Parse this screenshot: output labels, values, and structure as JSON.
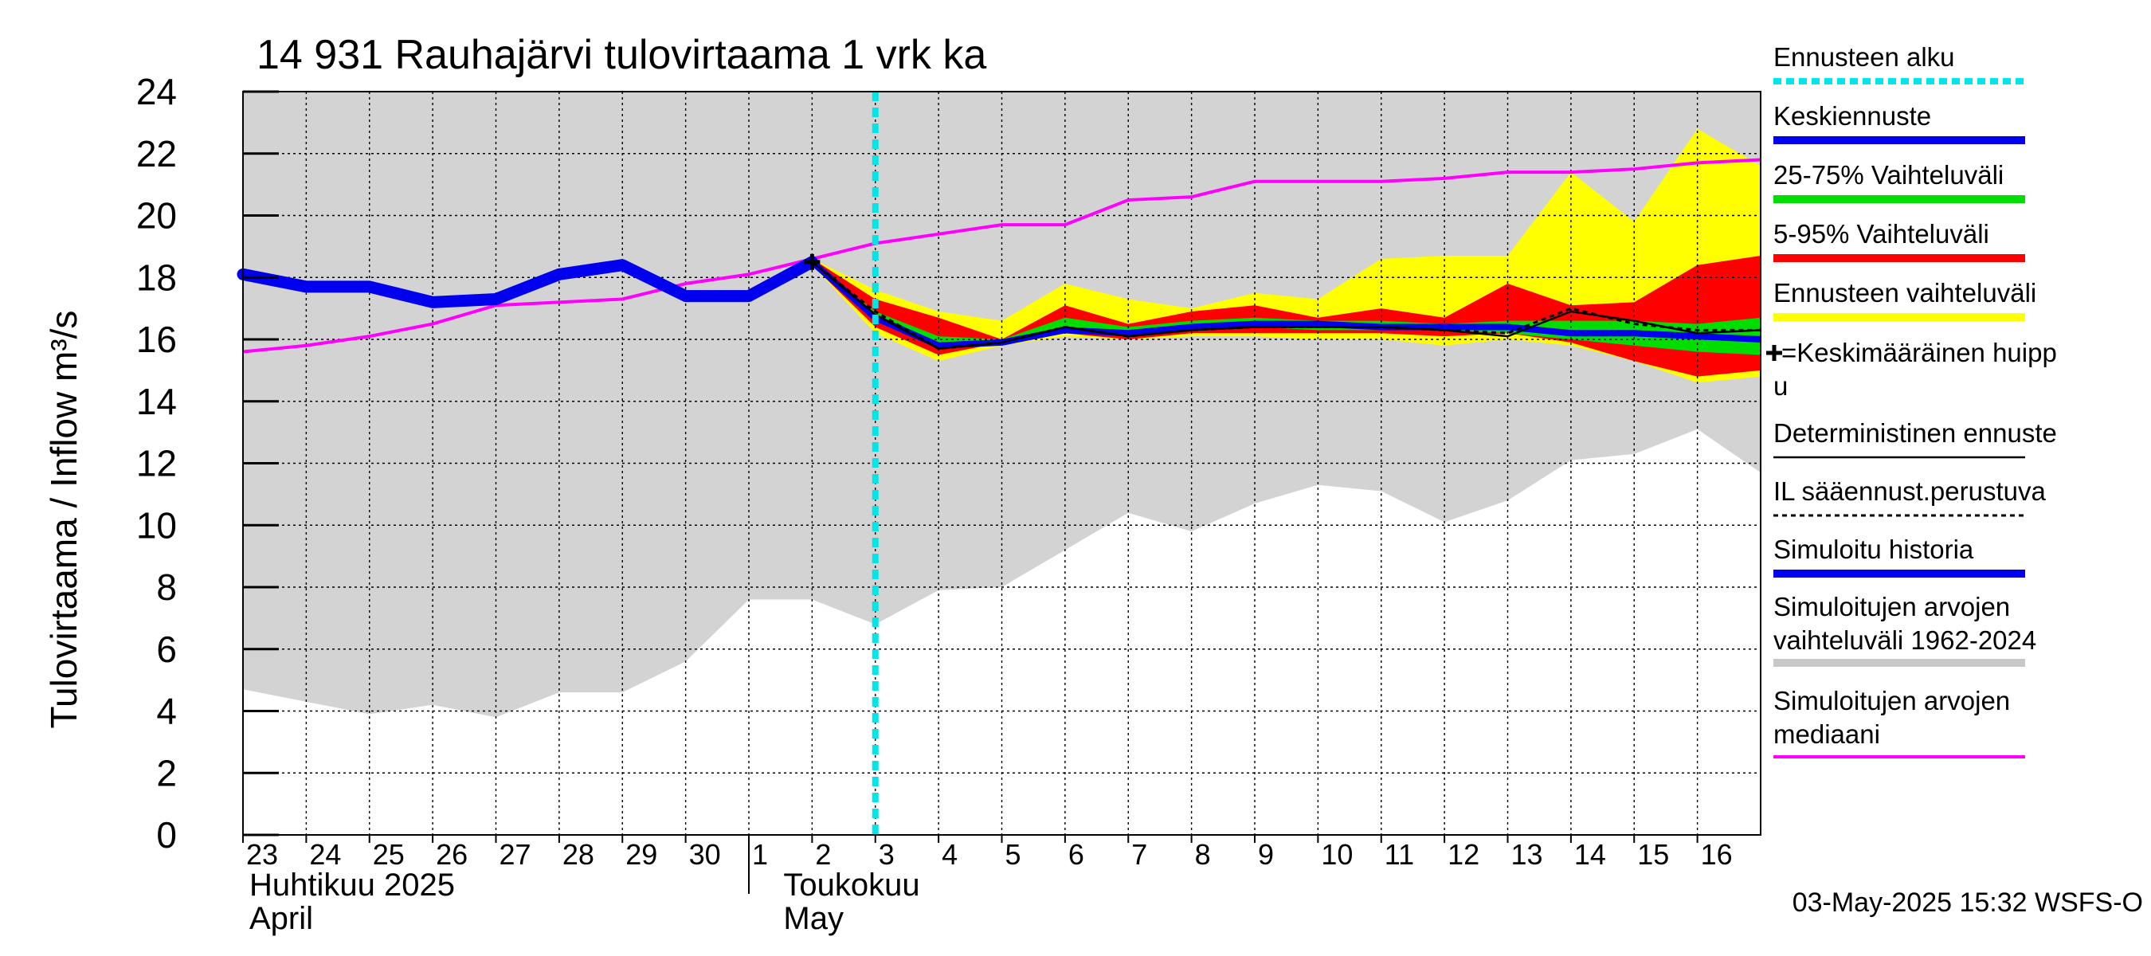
{
  "chart_data": {
    "type": "area",
    "title": "14 931 Rauhajärvi tulovirtaama 1 vrk ka",
    "ylabel": "Tulovirtaama / Inflow    m³/s",
    "ylim": [
      0,
      24
    ],
    "yticks": [
      0,
      2,
      4,
      6,
      8,
      10,
      12,
      14,
      16,
      18,
      20,
      22,
      24
    ],
    "grid": true,
    "x_labels": [
      "23",
      "24",
      "25",
      "26",
      "27",
      "28",
      "29",
      "30",
      "1",
      "2",
      "3",
      "4",
      "5",
      "6",
      "7",
      "8",
      "9",
      "10",
      "11",
      "12",
      "13",
      "14",
      "15",
      "16"
    ],
    "months": [
      {
        "fi": "Huhtikuu  2025",
        "en": "April"
      },
      {
        "fi": "Toukokuu",
        "en": "May"
      }
    ],
    "forecast_start_x": 10,
    "x_axis_max": 24,
    "series": {
      "historical_range": {
        "name": "Simuloitujen arvojen vaihteluväli 1962-2024",
        "color": "#d3d3d3",
        "x": [
          0,
          1,
          2,
          3,
          4,
          5,
          6,
          7,
          8,
          9,
          10,
          11,
          12,
          13,
          14,
          15,
          16,
          17,
          18,
          19,
          20,
          21,
          22,
          23,
          24
        ],
        "upper": [
          24,
          24,
          24,
          24,
          24,
          24,
          24,
          24,
          24,
          24,
          24,
          24,
          24,
          24,
          24,
          24,
          24,
          24,
          24,
          24,
          24,
          24,
          24,
          24,
          24
        ],
        "lower": [
          4.7,
          4.3,
          3.9,
          4.2,
          3.8,
          4.6,
          4.6,
          5.6,
          7.6,
          7.6,
          6.8,
          7.9,
          8.0,
          9.2,
          10.4,
          9.8,
          10.7,
          11.3,
          11.1,
          10.1,
          10.8,
          12.1,
          12.3,
          13.1,
          11.7
        ]
      },
      "forecast_range": {
        "name": "Ennusteen vaihteluväli",
        "color": "#ffff00",
        "x": [
          9,
          10,
          11,
          12,
          13,
          14,
          15,
          16,
          17,
          18,
          19,
          20,
          21,
          22,
          23,
          24
        ],
        "upper": [
          18.6,
          17.6,
          16.9,
          16.6,
          17.8,
          17.3,
          17.0,
          17.5,
          17.3,
          18.6,
          18.7,
          18.7,
          21.4,
          19.8,
          22.8,
          21.6
        ],
        "lower": [
          18.4,
          16.2,
          15.3,
          15.8,
          16.1,
          16.0,
          16.1,
          16.1,
          16.0,
          16.0,
          15.8,
          16.0,
          15.8,
          15.3,
          14.6,
          14.8
        ]
      },
      "p5_95": {
        "name": "5-95% Vaihteluväli",
        "color": "#ff0000",
        "x": [
          9,
          10,
          11,
          12,
          13,
          14,
          15,
          16,
          17,
          18,
          19,
          20,
          21,
          22,
          23,
          24
        ],
        "upper": [
          18.6,
          17.3,
          16.7,
          16.0,
          17.1,
          16.5,
          16.9,
          17.1,
          16.7,
          17.0,
          16.7,
          17.8,
          17.1,
          17.2,
          18.4,
          18.7
        ],
        "lower": [
          18.4,
          16.4,
          15.5,
          15.9,
          16.2,
          16.0,
          16.2,
          16.2,
          16.2,
          16.2,
          16.1,
          16.2,
          15.9,
          15.3,
          14.8,
          15.0
        ]
      },
      "p25_75": {
        "name": "25-75% Vaihteluväli",
        "color": "#00dd00",
        "x": [
          9,
          10,
          11,
          12,
          13,
          14,
          15,
          16,
          17,
          18,
          19,
          20,
          21,
          22,
          23,
          24
        ],
        "upper": [
          18.5,
          16.9,
          16.1,
          16.0,
          16.7,
          16.4,
          16.6,
          16.7,
          16.6,
          16.6,
          16.5,
          16.6,
          16.6,
          16.6,
          16.5,
          16.7
        ],
        "lower": [
          18.4,
          16.7,
          15.7,
          15.9,
          16.3,
          16.1,
          16.3,
          16.4,
          16.3,
          16.3,
          16.3,
          16.2,
          16.0,
          15.8,
          15.6,
          15.5
        ]
      },
      "median": {
        "name": "Simuloitujen arvojen mediaani",
        "color": "#ff00ff",
        "x": [
          0,
          1,
          2,
          3,
          4,
          5,
          6,
          7,
          8,
          9,
          10,
          11,
          12,
          13,
          14,
          15,
          16,
          17,
          18,
          19,
          20,
          21,
          22,
          23,
          24
        ],
        "values": [
          15.6,
          15.8,
          16.1,
          16.5,
          17.1,
          17.2,
          17.3,
          17.8,
          18.1,
          18.6,
          19.1,
          19.4,
          19.7,
          19.7,
          20.5,
          20.6,
          21.1,
          21.1,
          21.1,
          21.2,
          21.4,
          21.4,
          21.5,
          21.7,
          21.8
        ]
      },
      "simulated_history": {
        "name": "Simuloitu historia",
        "color": "#0000ee",
        "x": [
          0,
          1,
          2,
          3,
          4,
          5,
          6,
          7,
          8,
          9
        ],
        "values": [
          18.1,
          17.7,
          17.7,
          17.2,
          17.3,
          18.1,
          18.4,
          17.4,
          17.4,
          18.5
        ]
      },
      "mean_forecast": {
        "name": "Keskiennuste",
        "color": "#0000ee",
        "x": [
          9,
          10,
          11,
          12,
          13,
          14,
          15,
          16,
          17,
          18,
          19,
          20,
          21,
          22,
          23,
          24
        ],
        "values": [
          18.5,
          16.7,
          15.8,
          15.9,
          16.3,
          16.2,
          16.4,
          16.5,
          16.5,
          16.4,
          16.4,
          16.4,
          16.2,
          16.2,
          16.1,
          16.0
        ]
      },
      "deterministic": {
        "name": "Deterministinen ennuste",
        "color": "#000000",
        "x": [
          9,
          10,
          11,
          12,
          13,
          14,
          15,
          16,
          17,
          18,
          19,
          20,
          21,
          22,
          23,
          24
        ],
        "values": [
          18.5,
          16.8,
          15.7,
          15.9,
          16.4,
          16.1,
          16.3,
          16.4,
          16.4,
          16.4,
          16.3,
          16.1,
          16.9,
          16.6,
          16.2,
          16.3
        ]
      },
      "il_forecast": {
        "name": "IL sääennust.perustuva",
        "color": "#000000",
        "x": [
          9,
          10,
          11,
          12,
          13,
          14,
          15,
          16,
          17,
          18,
          19,
          20,
          21,
          22,
          23,
          24
        ],
        "values": [
          18.5,
          16.9,
          15.7,
          15.9,
          16.4,
          16.1,
          16.3,
          16.4,
          16.4,
          16.4,
          16.3,
          16.2,
          17.0,
          16.5,
          16.3,
          16.3
        ]
      },
      "mean_peak": {
        "name": "=Keskimääräinen huippu",
        "x": 9,
        "value": 18.5
      }
    },
    "legend": [
      {
        "label": "Ennusteen alku",
        "style": "dotted",
        "color": "#00e5e5"
      },
      {
        "label": "Keskiennuste",
        "style": "thick",
        "color": "#0000ee"
      },
      {
        "label": "25-75% Vaihteluväli",
        "style": "thick",
        "color": "#00dd00"
      },
      {
        "label": "5-95% Vaihteluväli",
        "style": "thick",
        "color": "#ff0000"
      },
      {
        "label": "Ennusteen vaihteluväli",
        "style": "thick",
        "color": "#ffff00"
      },
      {
        "label": "=Keskimääräinen huipp",
        "label_cont": "u",
        "style": "marker",
        "color": "#000000"
      },
      {
        "label": "Deterministinen ennuste",
        "style": "thin",
        "color": "#000000"
      },
      {
        "label": "IL sääennust.perustuva",
        "style": "dashed",
        "color": "#000000"
      },
      {
        "label": "Simuloitu historia",
        "style": "thick",
        "color": "#0000ee"
      },
      {
        "label": "Simuloitujen arvojen",
        "label_cont": "vaihteluväli 1962-2024",
        "style": "thick",
        "color": "#c8c8c8"
      },
      {
        "label": "Simuloitujen arvojen",
        "label_cont": "mediaani",
        "style": "medium",
        "color": "#ff00ff"
      }
    ],
    "footer": "03-May-2025 15:32 WSFS-O"
  }
}
